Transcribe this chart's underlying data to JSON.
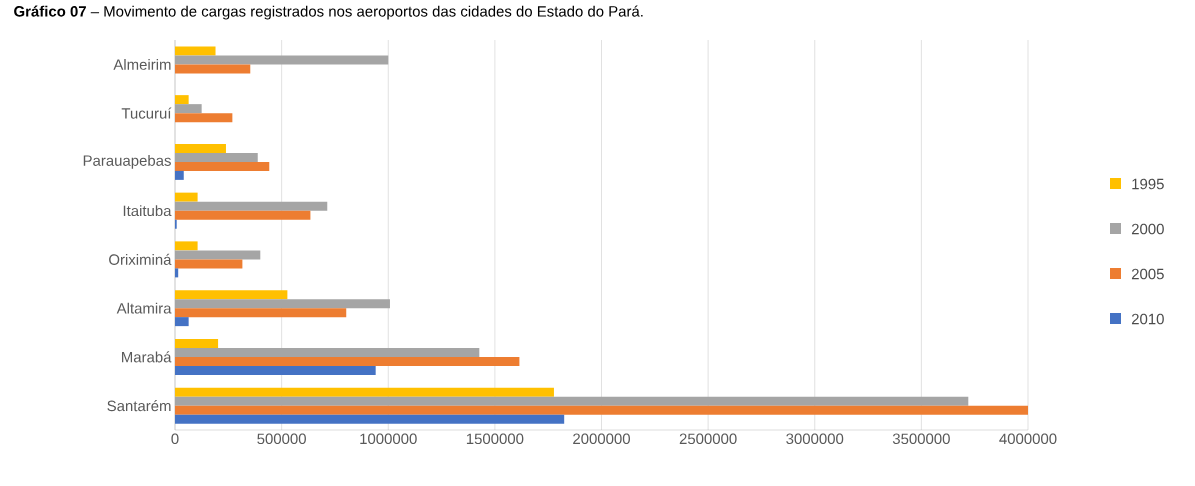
{
  "chart_data": {
    "type": "bar",
    "orientation": "horizontal",
    "title": "**Gráfico 07** – Movimento de cargas registrados nos aeroportos das cidades do Estado do Pará.",
    "categories": [
      "Almeirim",
      "Tucuruí",
      "Parauapebas",
      "Itaituba",
      "Oriximiná",
      "Altamira",
      "Marabá",
      "Santarém"
    ],
    "series": [
      {
        "name": "1995",
        "color": "#ffc000",
        "values": [
          190000,
          64000,
          239000,
          106000,
          106000,
          527000,
          202000,
          1777000
        ]
      },
      {
        "name": "2000",
        "color": "#a5a5a5",
        "values": [
          1000000,
          125000,
          388000,
          714000,
          400000,
          1008000,
          1427000,
          3720000
        ]
      },
      {
        "name": "2005",
        "color": "#ed7d31",
        "values": [
          353000,
          269000,
          442000,
          635000,
          316000,
          803000,
          1615000,
          4000000
        ]
      },
      {
        "name": "2010",
        "color": "#4472c4",
        "values": [
          null,
          null,
          41000,
          8000,
          15000,
          64000,
          941000,
          1825000
        ]
      }
    ],
    "xlim": [
      0,
      4000000
    ],
    "xticks": [
      0,
      500000,
      1000000,
      1500000,
      2000000,
      2500000,
      3000000,
      3500000,
      4000000
    ],
    "grid": "x",
    "legend": "right"
  }
}
